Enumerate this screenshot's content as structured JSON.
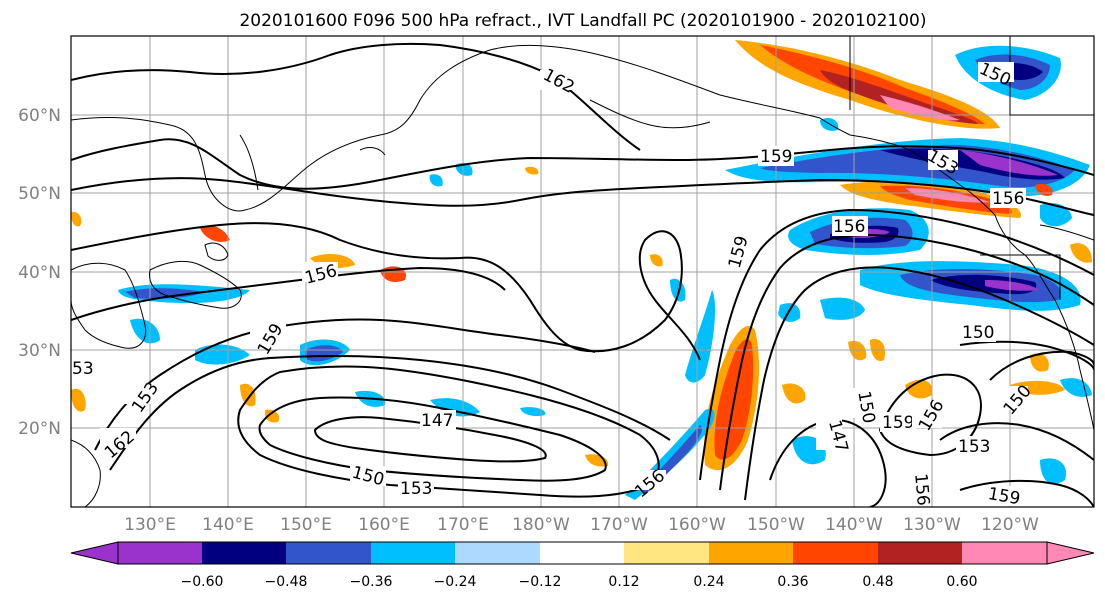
{
  "title": "2020101600 F096 500 hPa refract., IVT Landfall PC (2020101900 - 2020102100)",
  "axes": {
    "lon_labels": [
      "130°E",
      "140°E",
      "150°E",
      "160°E",
      "170°E",
      "180°W",
      "170°W",
      "160°W",
      "150°W",
      "140°W",
      "130°W",
      "120°W"
    ],
    "lat_labels": [
      "60°N",
      "50°N",
      "40°N",
      "30°N",
      "20°N"
    ]
  },
  "contour_labels": [
    "162",
    "159",
    "156",
    "156",
    "159",
    "159",
    "156",
    "150",
    "153",
    "147",
    "150",
    "153",
    "156",
    "162",
    "153",
    "150",
    "159",
    "156",
    "150",
    "147",
    "156",
    "153",
    "159",
    "150",
    "53"
  ],
  "colorbar": {
    "colors": [
      "#9933cc",
      "#000080",
      "#3355cc",
      "#00bfff",
      "#add8ff",
      "#ffffff",
      "#ffe680",
      "#ffa500",
      "#ff4500",
      "#b22222",
      "#ff88b4"
    ],
    "tick_labels": [
      "−0.60",
      "−0.48",
      "−0.36",
      "−0.24",
      "−0.12",
      "0.12",
      "0.24",
      "0.36",
      "0.48",
      "0.60"
    ]
  }
}
